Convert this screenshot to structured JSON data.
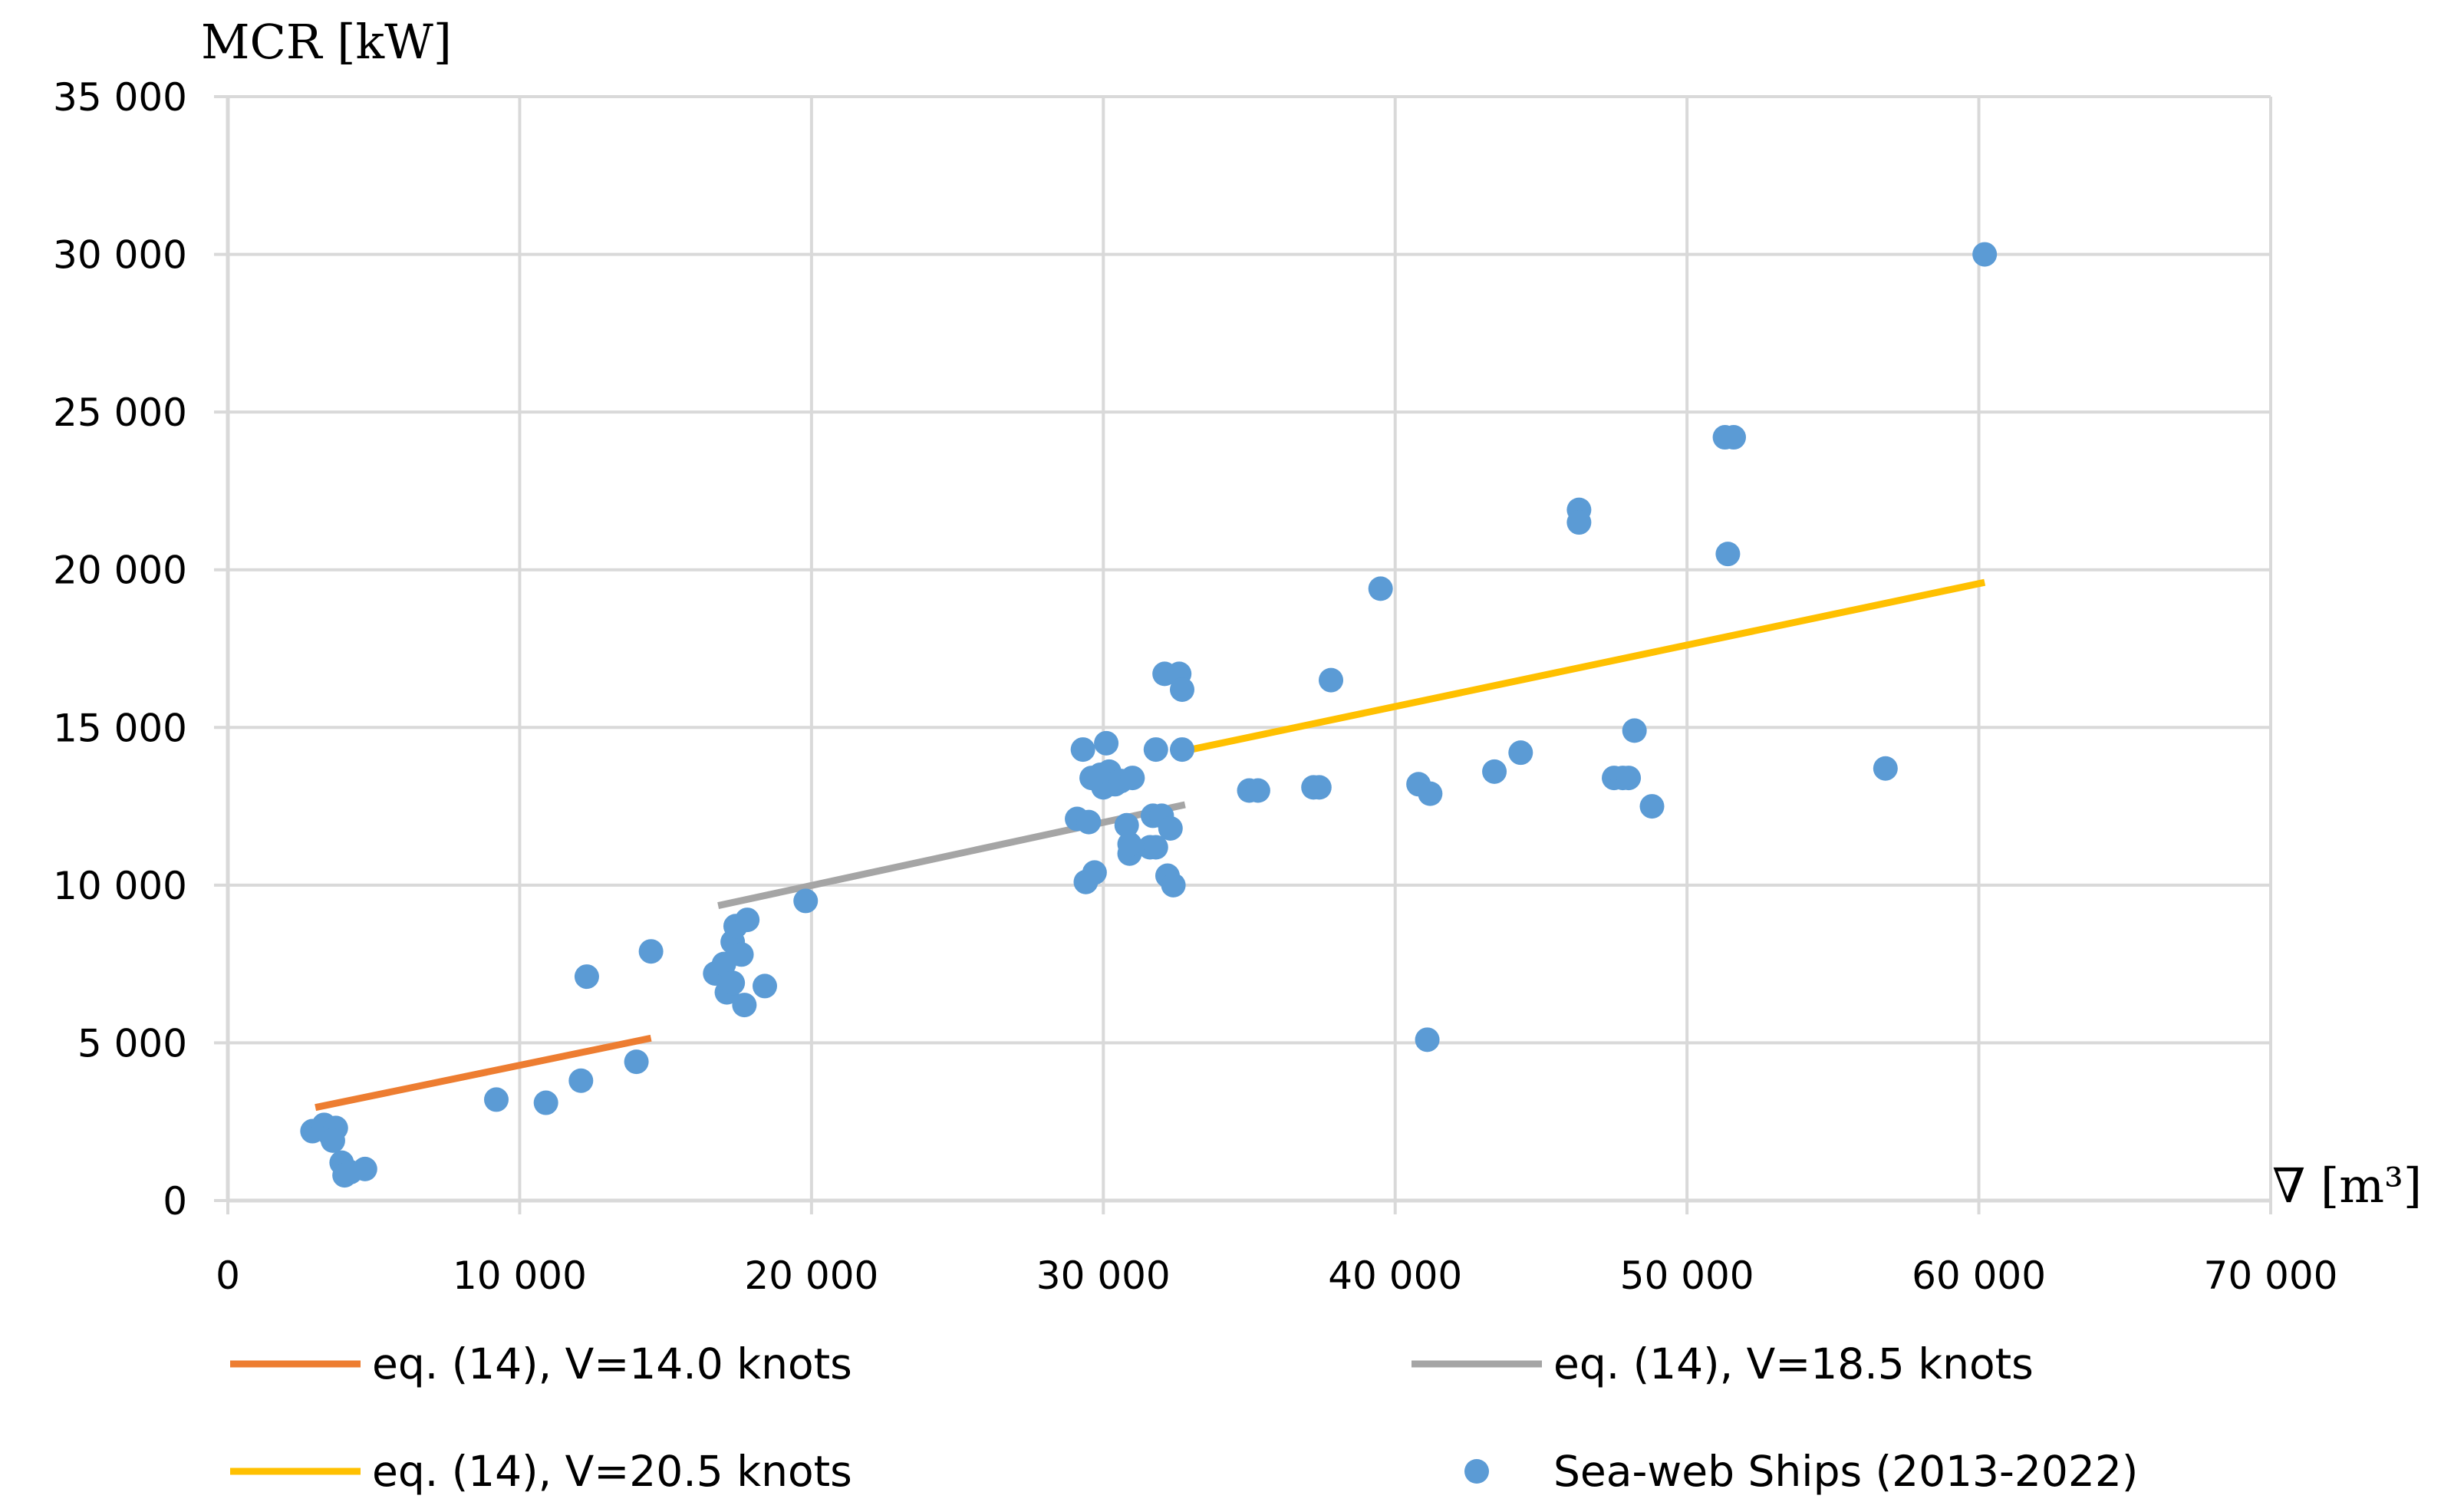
{
  "chart_data": {
    "type": "scatter",
    "xlabel": "∇ [m³]",
    "ylabel": "MCR [kW]",
    "xlim": [
      0,
      70000
    ],
    "ylim": [
      0,
      35000
    ],
    "grid": true,
    "legend_position": "bottom",
    "x_ticks": [
      0,
      10000,
      20000,
      30000,
      40000,
      50000,
      60000,
      70000
    ],
    "x_tick_labels": [
      "0",
      "10 000",
      "20 000",
      "30 000",
      "40 000",
      "50 000",
      "60 000",
      "70 000"
    ],
    "y_ticks": [
      0,
      5000,
      10000,
      15000,
      20000,
      25000,
      30000,
      35000
    ],
    "y_tick_labels": [
      "0",
      "5 000",
      "10 000",
      "15 000",
      "20 000",
      "25 000",
      "30 000",
      "35 000"
    ],
    "series": [
      {
        "name": "eq. (14), V=14.0 knots",
        "kind": "line",
        "color": "#ED7D31",
        "points": [
          [
            3000,
            2950
          ],
          [
            14500,
            5150
          ]
        ]
      },
      {
        "name": "eq. (14), V=18.5 knots",
        "kind": "line",
        "color": "#A5A5A5",
        "points": [
          [
            16800,
            9350
          ],
          [
            32800,
            12550
          ]
        ]
      },
      {
        "name": "eq. (14), V=20.5 knots",
        "kind": "line",
        "color": "#FFC000",
        "points": [
          [
            33000,
            14300
          ],
          [
            60200,
            19600
          ]
        ]
      },
      {
        "name": "Sea-web Ships (2013-2022)",
        "kind": "scatter",
        "color": "#5B9BD5",
        "points": [
          [
            2900,
            2200
          ],
          [
            3300,
            2400
          ],
          [
            3500,
            2100
          ],
          [
            3700,
            2300
          ],
          [
            3600,
            1900
          ],
          [
            3900,
            1200
          ],
          [
            4000,
            800
          ],
          [
            4200,
            900
          ],
          [
            4700,
            1000
          ],
          [
            9200,
            3200
          ],
          [
            10900,
            3100
          ],
          [
            12100,
            3800
          ],
          [
            12300,
            7100
          ],
          [
            14000,
            4400
          ],
          [
            14500,
            7900
          ],
          [
            16700,
            7200
          ],
          [
            17000,
            7500
          ],
          [
            17100,
            6600
          ],
          [
            17300,
            6900
          ],
          [
            17300,
            8200
          ],
          [
            17400,
            8700
          ],
          [
            17600,
            7800
          ],
          [
            17700,
            6200
          ],
          [
            17800,
            8900
          ],
          [
            18400,
            6800
          ],
          [
            19800,
            9500
          ],
          [
            29100,
            12100
          ],
          [
            29300,
            14300
          ],
          [
            29400,
            10100
          ],
          [
            29500,
            12000
          ],
          [
            29600,
            13400
          ],
          [
            29700,
            10400
          ],
          [
            29900,
            13500
          ],
          [
            30000,
            13100
          ],
          [
            30100,
            14500
          ],
          [
            30200,
            13600
          ],
          [
            30400,
            13200
          ],
          [
            30600,
            13300
          ],
          [
            30800,
            11900
          ],
          [
            30900,
            11000
          ],
          [
            30900,
            11300
          ],
          [
            31000,
            13400
          ],
          [
            31600,
            11200
          ],
          [
            31700,
            12200
          ],
          [
            31800,
            11200
          ],
          [
            31800,
            14300
          ],
          [
            32000,
            12200
          ],
          [
            32100,
            16700
          ],
          [
            32200,
            10300
          ],
          [
            32300,
            11800
          ],
          [
            32400,
            10000
          ],
          [
            32600,
            16700
          ],
          [
            32700,
            16200
          ],
          [
            32700,
            14300
          ],
          [
            35000,
            13000
          ],
          [
            35300,
            13000
          ],
          [
            37200,
            13100
          ],
          [
            37400,
            13100
          ],
          [
            37800,
            16500
          ],
          [
            39500,
            19400
          ],
          [
            40800,
            13200
          ],
          [
            41100,
            5100
          ],
          [
            41200,
            12900
          ],
          [
            43400,
            13600
          ],
          [
            44300,
            14200
          ],
          [
            46300,
            21900
          ],
          [
            46300,
            21500
          ],
          [
            47500,
            13400
          ],
          [
            47800,
            13400
          ],
          [
            48000,
            13400
          ],
          [
            48200,
            14900
          ],
          [
            48800,
            12500
          ],
          [
            51300,
            24200
          ],
          [
            51400,
            20500
          ],
          [
            51600,
            24200
          ],
          [
            56800,
            13700
          ],
          [
            60200,
            30000
          ]
        ]
      }
    ]
  }
}
